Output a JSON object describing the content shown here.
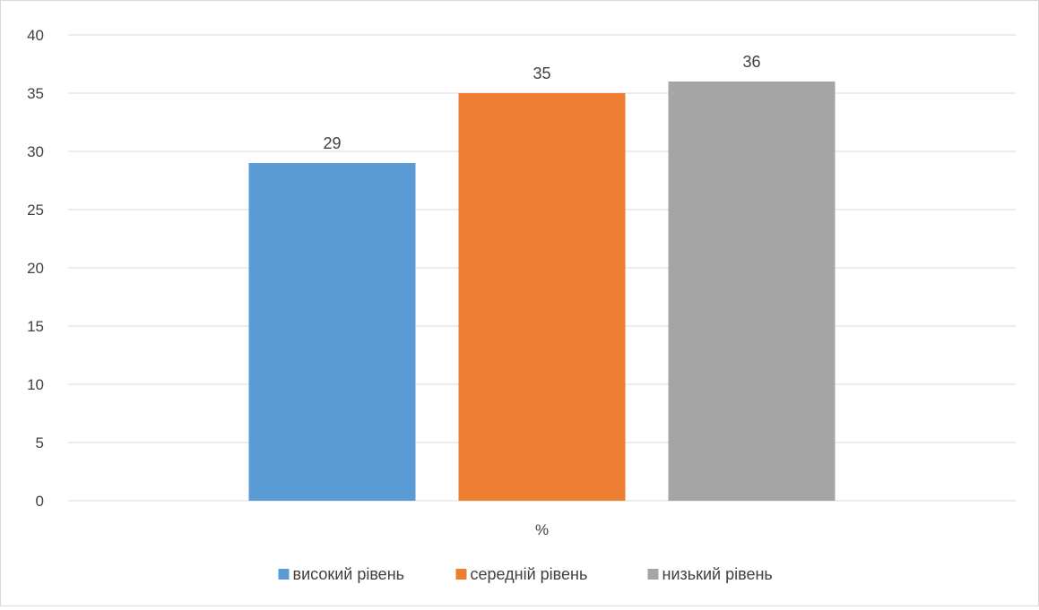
{
  "chart_data": {
    "type": "bar",
    "categories": [
      "%"
    ],
    "series": [
      {
        "name": "високий рівень",
        "values": [
          29
        ],
        "color": "#5b9bd5"
      },
      {
        "name": "середній рівень",
        "values": [
          35
        ],
        "color": "#ed7d31"
      },
      {
        "name": "низький рівень",
        "values": [
          36
        ],
        "color": "#a5a5a5"
      }
    ],
    "ylim": [
      0,
      40
    ],
    "yticks": [
      0,
      5,
      10,
      15,
      20,
      25,
      30,
      35,
      40
    ],
    "grid": true,
    "legend": "bottom",
    "data_labels": true
  }
}
